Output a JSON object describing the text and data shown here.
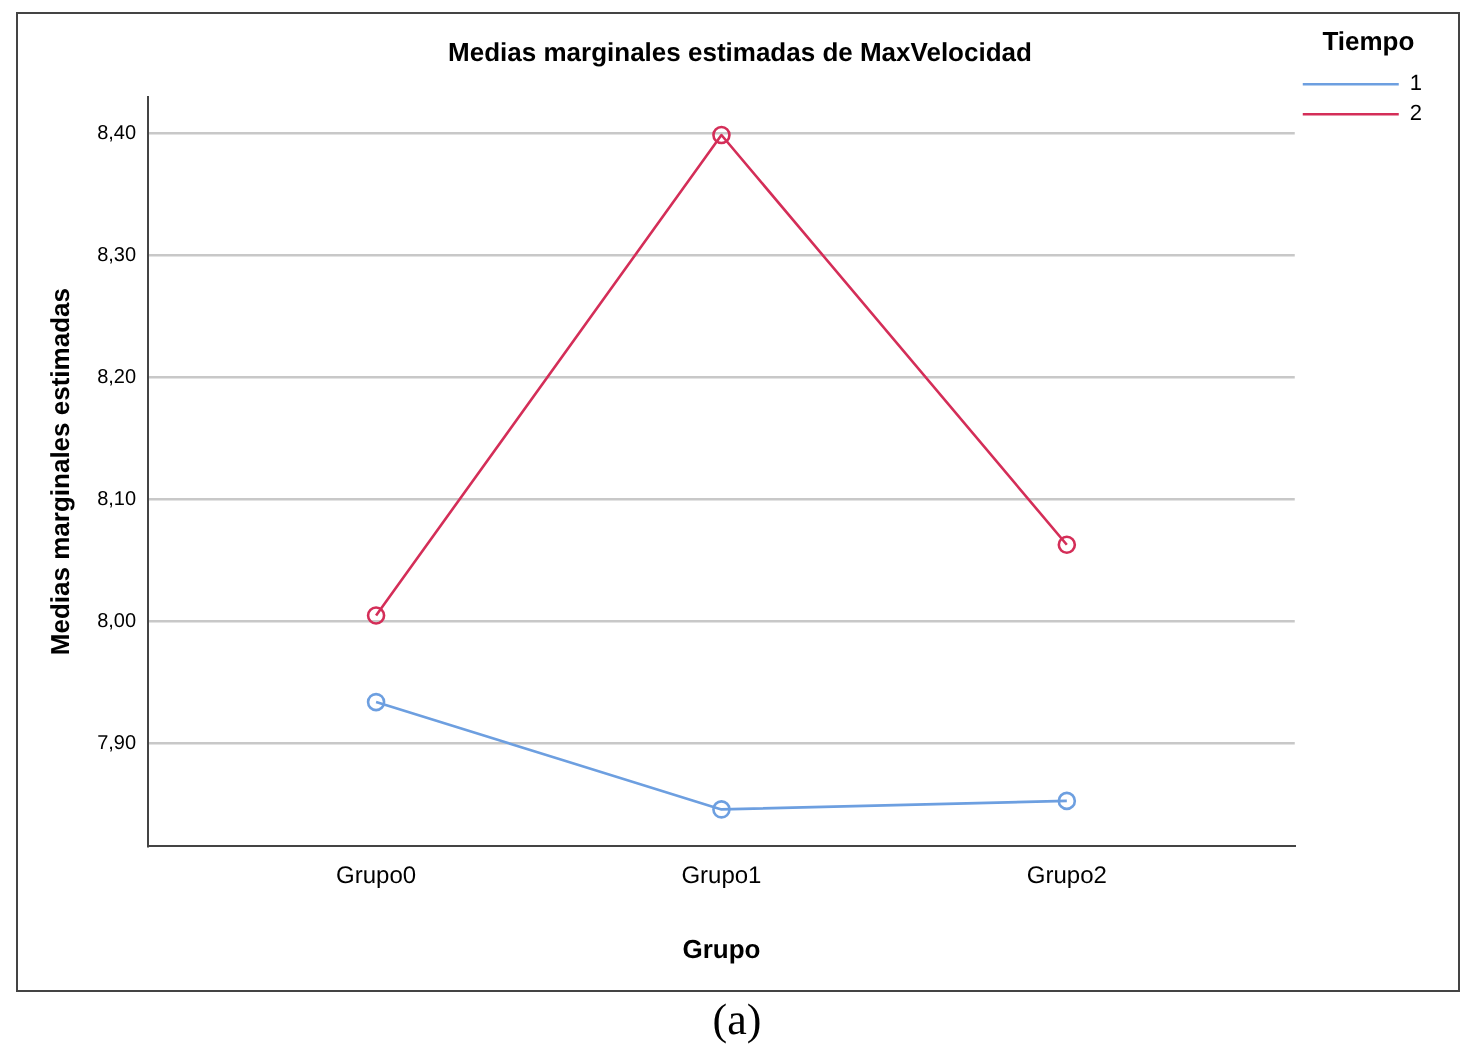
{
  "chart_data": {
    "type": "line",
    "title": "Medias marginales estimadas de MaxVelocidad",
    "xlabel": "Grupo",
    "ylabel": "Medias marginales estimadas",
    "legend_title": "Tiempo",
    "categories": [
      "Grupo0",
      "Grupo1",
      "Grupo2"
    ],
    "series": [
      {
        "name": "1",
        "color": "#6d9fe0",
        "values": [
          7.934,
          7.846,
          7.853
        ]
      },
      {
        "name": "2",
        "color": "#d42e58",
        "values": [
          8.005,
          8.399,
          8.063
        ]
      }
    ],
    "ylim": [
      7.816,
      8.43
    ],
    "yticks": [
      {
        "value": 7.9,
        "label": "7,90"
      },
      {
        "value": 8.0,
        "label": "8,00"
      },
      {
        "value": 8.1,
        "label": "8,10"
      },
      {
        "value": 8.2,
        "label": "8,20"
      },
      {
        "value": 8.3,
        "label": "8,30"
      },
      {
        "value": 8.4,
        "label": "8,40"
      }
    ],
    "grid": "y",
    "legend": "top right",
    "marker": "circle",
    "line_style": "solid",
    "annotations": [
      "(a)"
    ]
  }
}
